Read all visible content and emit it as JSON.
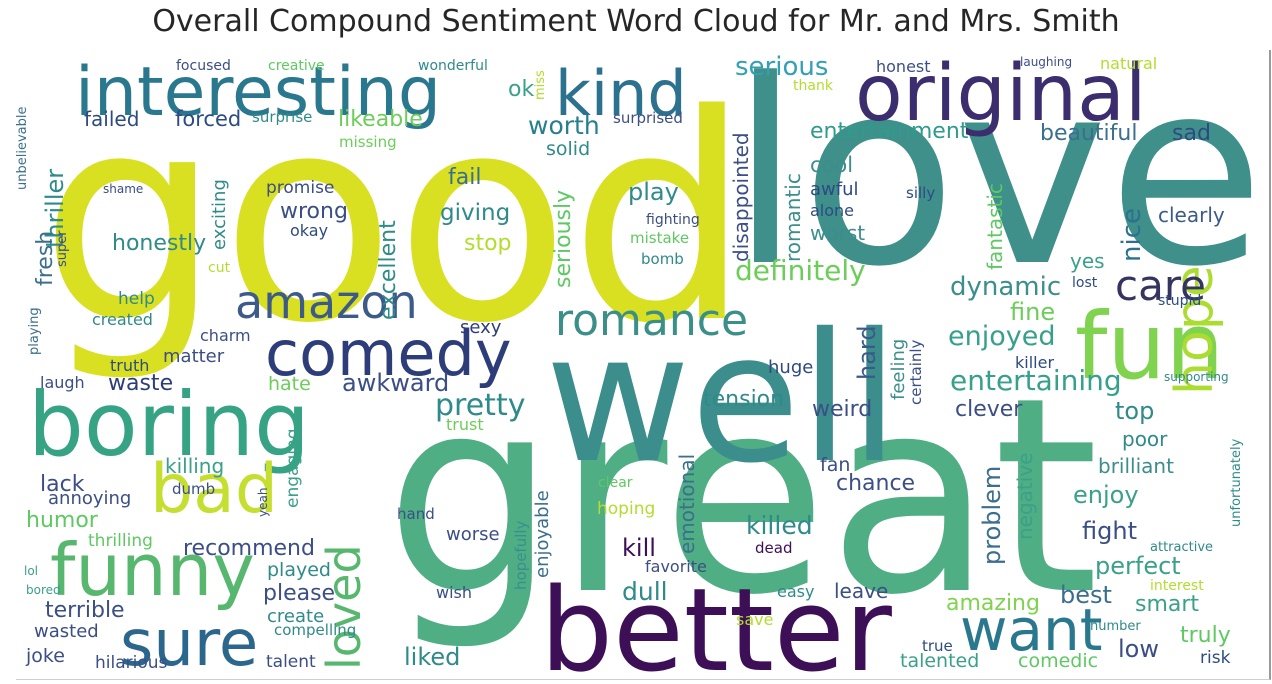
{
  "chart_data": {
    "type": "wordcloud",
    "title": "Overall Compound Sentiment Word Cloud for Mr. and Mrs. Smith",
    "colormap": "viridis",
    "background": "#ffffff",
    "words": [
      {
        "text": "good",
        "weight": 1.0,
        "color": "#d9e021"
      },
      {
        "text": "love",
        "weight": 0.93,
        "color": "#3f8f8b"
      },
      {
        "text": "great",
        "weight": 0.9,
        "color": "#4fae84"
      },
      {
        "text": "well",
        "weight": 0.82,
        "color": "#3b8e8c"
      },
      {
        "text": "better",
        "weight": 0.72,
        "color": "#3d0f57"
      },
      {
        "text": "original",
        "weight": 0.55,
        "color": "#3b2d6e"
      },
      {
        "text": "interesting",
        "weight": 0.5,
        "color": "#2a788e"
      },
      {
        "text": "fun",
        "weight": 0.52,
        "color": "#7fd34e"
      },
      {
        "text": "boring",
        "weight": 0.5,
        "color": "#36a384"
      },
      {
        "text": "kind",
        "weight": 0.42,
        "color": "#2c718e"
      },
      {
        "text": "comedy",
        "weight": 0.42,
        "color": "#2d3d7a"
      },
      {
        "text": "funny",
        "weight": 0.44,
        "color": "#57b76e"
      },
      {
        "text": "bad",
        "weight": 0.42,
        "color": "#c5de30"
      },
      {
        "text": "sure",
        "weight": 0.4,
        "color": "#2b668d"
      },
      {
        "text": "want",
        "weight": 0.36,
        "color": "#2a788e"
      },
      {
        "text": "amazon",
        "weight": 0.32,
        "color": "#3c5a8a"
      },
      {
        "text": "romance",
        "weight": 0.3,
        "color": "#3a8f88"
      },
      {
        "text": "hope",
        "weight": 0.34,
        "color": "#aadc32"
      },
      {
        "text": "care",
        "weight": 0.26,
        "color": "#35335f"
      },
      {
        "text": "loved",
        "weight": 0.3,
        "color": "#57b76e"
      },
      {
        "text": "pretty",
        "weight": 0.2,
        "color": "#2f8a8a"
      },
      {
        "text": "serious",
        "weight": 0.18,
        "color": "#33a0b3"
      },
      {
        "text": "definitely",
        "weight": 0.19,
        "color": "#6dcd59"
      },
      {
        "text": "entertaining",
        "weight": 0.2,
        "color": "#37a08d"
      },
      {
        "text": "enjoyed",
        "weight": 0.18,
        "color": "#37a08d"
      },
      {
        "text": "dynamic",
        "weight": 0.17,
        "color": "#3b8e8c"
      },
      {
        "text": "fine",
        "weight": 0.15,
        "color": "#6dcd59"
      },
      {
        "text": "worth",
        "weight": 0.16,
        "color": "#277f8e"
      },
      {
        "text": "likeable",
        "weight": 0.14,
        "color": "#6dcd59"
      },
      {
        "text": "forced",
        "weight": 0.13,
        "color": "#2d4b82"
      },
      {
        "text": "failed",
        "weight": 0.12,
        "color": "#2d4b82"
      },
      {
        "text": "ok",
        "weight": 0.14,
        "color": "#3aa08a"
      },
      {
        "text": "entertainment",
        "weight": 0.14,
        "color": "#2f9b8c"
      },
      {
        "text": "beautiful",
        "weight": 0.14,
        "color": "#3b6f8e"
      },
      {
        "text": "sad",
        "weight": 0.14,
        "color": "#2d4b82"
      },
      {
        "text": "cool",
        "weight": 0.13,
        "color": "#3b8e8c"
      },
      {
        "text": "awful",
        "weight": 0.11,
        "color": "#2d4b82"
      },
      {
        "text": "alone",
        "weight": 0.1,
        "color": "#2d4b82"
      },
      {
        "text": "worst",
        "weight": 0.12,
        "color": "#3b8e8c"
      },
      {
        "text": "fantastic",
        "weight": 0.13,
        "color": "#5ec962"
      },
      {
        "text": "nice",
        "weight": 0.16,
        "color": "#2c718e"
      },
      {
        "text": "yes",
        "weight": 0.13,
        "color": "#3aa08a"
      },
      {
        "text": "clearly",
        "weight": 0.13,
        "color": "#3b5a8a"
      },
      {
        "text": "romantic",
        "weight": 0.13,
        "color": "#3b8e8c"
      },
      {
        "text": "disappointed",
        "weight": 0.14,
        "color": "#3b4e86"
      },
      {
        "text": "play",
        "weight": 0.15,
        "color": "#2f8a8a"
      },
      {
        "text": "giving",
        "weight": 0.14,
        "color": "#2f8a8a"
      },
      {
        "text": "fail",
        "weight": 0.14,
        "color": "#3b6f8e"
      },
      {
        "text": "stop",
        "weight": 0.14,
        "color": "#b2dd2e"
      },
      {
        "text": "solid",
        "weight": 0.12,
        "color": "#2f8a8a"
      },
      {
        "text": "seriously",
        "weight": 0.14,
        "color": "#5ec962"
      },
      {
        "text": "excellent",
        "weight": 0.14,
        "color": "#2f8a8a"
      },
      {
        "text": "wrong",
        "weight": 0.14,
        "color": "#3b4e86"
      },
      {
        "text": "okay",
        "weight": 0.1,
        "color": "#2d4b82"
      },
      {
        "text": "promise",
        "weight": 0.1,
        "color": "#3b4e86"
      },
      {
        "text": "exciting",
        "weight": 0.12,
        "color": "#2f8a8a"
      },
      {
        "text": "thriller",
        "weight": 0.15,
        "color": "#2f8a8a"
      },
      {
        "text": "fresh",
        "weight": 0.14,
        "color": "#3b6f8e"
      },
      {
        "text": "honestly",
        "weight": 0.13,
        "color": "#2f8a8a"
      },
      {
        "text": "help",
        "weight": 0.11,
        "color": "#2f8a8a"
      },
      {
        "text": "created",
        "weight": 0.1,
        "color": "#2f8a8a"
      },
      {
        "text": "charm",
        "weight": 0.09,
        "color": "#3b4e86"
      },
      {
        "text": "matter",
        "weight": 0.1,
        "color": "#3b4e86"
      },
      {
        "text": "truth",
        "weight": 0.09,
        "color": "#2d4b82"
      },
      {
        "text": "laugh",
        "weight": 0.09,
        "color": "#3b4e86"
      },
      {
        "text": "waste",
        "weight": 0.14,
        "color": "#2d3d7a"
      },
      {
        "text": "hate",
        "weight": 0.11,
        "color": "#6dcd59"
      },
      {
        "text": "awkward",
        "weight": 0.15,
        "color": "#3b4e86"
      },
      {
        "text": "sexy",
        "weight": 0.1,
        "color": "#2d3d7a"
      },
      {
        "text": "hard",
        "weight": 0.16,
        "color": "#3b5a8a"
      },
      {
        "text": "feeling",
        "weight": 0.12,
        "color": "#3b8e8c"
      },
      {
        "text": "certainly",
        "weight": 0.1,
        "color": "#3b4e86"
      },
      {
        "text": "huge",
        "weight": 0.12,
        "color": "#2d4b82"
      },
      {
        "text": "tension",
        "weight": 0.14,
        "color": "#2f8a8a"
      },
      {
        "text": "weird",
        "weight": 0.14,
        "color": "#3b4e86"
      },
      {
        "text": "clever",
        "weight": 0.14,
        "color": "#3b4e86"
      },
      {
        "text": "killer",
        "weight": 0.1,
        "color": "#2d4b82"
      },
      {
        "text": "top",
        "weight": 0.15,
        "color": "#2f8a8a"
      },
      {
        "text": "poor",
        "weight": 0.13,
        "color": "#2f8a8a"
      },
      {
        "text": "brilliant",
        "weight": 0.13,
        "color": "#3b8e8c"
      },
      {
        "text": "negative",
        "weight": 0.13,
        "color": "#3aa08a"
      },
      {
        "text": "problem",
        "weight": 0.14,
        "color": "#3b6f8e"
      },
      {
        "text": "enjoy",
        "weight": 0.14,
        "color": "#3aa08a"
      },
      {
        "text": "fight",
        "weight": 0.14,
        "color": "#3b4e86"
      },
      {
        "text": "perfect",
        "weight": 0.14,
        "color": "#3aa08a"
      },
      {
        "text": "best",
        "weight": 0.14,
        "color": "#3b6f8e"
      },
      {
        "text": "smart",
        "weight": 0.14,
        "color": "#3aa08a"
      },
      {
        "text": "amazing",
        "weight": 0.14,
        "color": "#7fd34e"
      },
      {
        "text": "fan",
        "weight": 0.11,
        "color": "#3b4e86"
      },
      {
        "text": "chance",
        "weight": 0.12,
        "color": "#3b4e86"
      },
      {
        "text": "killed",
        "weight": 0.14,
        "color": "#2f8a8a"
      },
      {
        "text": "emotional",
        "weight": 0.12,
        "color": "#3b6f8e"
      },
      {
        "text": "kill",
        "weight": 0.14,
        "color": "#3d0f57"
      },
      {
        "text": "dull",
        "weight": 0.14,
        "color": "#2f8a8a"
      },
      {
        "text": "favorite",
        "weight": 0.09,
        "color": "#3b4e86"
      },
      {
        "text": "hoping",
        "weight": 0.09,
        "color": "#b2dd2e"
      },
      {
        "text": "clear",
        "weight": 0.08,
        "color": "#5ec962"
      },
      {
        "text": "worse",
        "weight": 0.1,
        "color": "#3b4e86"
      },
      {
        "text": "enjoyable",
        "weight": 0.11,
        "color": "#3b6f8e"
      },
      {
        "text": "hopefully",
        "weight": 0.08,
        "color": "#3b8e8c"
      },
      {
        "text": "killing",
        "weight": 0.12,
        "color": "#3aa08a"
      },
      {
        "text": "engaging",
        "weight": 0.1,
        "color": "#3aa08a"
      },
      {
        "text": "lack",
        "weight": 0.14,
        "color": "#3b4e86"
      },
      {
        "text": "annoying",
        "weight": 0.12,
        "color": "#3b4e86"
      },
      {
        "text": "humor",
        "weight": 0.14,
        "color": "#5ec962"
      },
      {
        "text": "recommend",
        "weight": 0.14,
        "color": "#3b4e86"
      },
      {
        "text": "thrilling",
        "weight": 0.1,
        "color": "#5ec962"
      },
      {
        "text": "played",
        "weight": 0.1,
        "color": "#2f8a8a"
      },
      {
        "text": "please",
        "weight": 0.13,
        "color": "#3b4e86"
      },
      {
        "text": "create",
        "weight": 0.11,
        "color": "#2f8a8a"
      },
      {
        "text": "compelling",
        "weight": 0.09,
        "color": "#2f8a8a"
      },
      {
        "text": "terrible",
        "weight": 0.14,
        "color": "#3b4e86"
      },
      {
        "text": "wasted",
        "weight": 0.11,
        "color": "#3b4e86"
      },
      {
        "text": "joke",
        "weight": 0.11,
        "color": "#3b4e86"
      },
      {
        "text": "hilarious",
        "weight": 0.1,
        "color": "#3b4e86"
      },
      {
        "text": "talent",
        "weight": 0.1,
        "color": "#3b4e86"
      },
      {
        "text": "liked",
        "weight": 0.14,
        "color": "#2f8a8a"
      },
      {
        "text": "wish",
        "weight": 0.1,
        "color": "#3b4e86"
      },
      {
        "text": "easy",
        "weight": 0.1,
        "color": "#2f8a8a"
      },
      {
        "text": "leave",
        "weight": 0.12,
        "color": "#3b4e86"
      },
      {
        "text": "save",
        "weight": 0.09,
        "color": "#b2dd2e"
      },
      {
        "text": "true",
        "weight": 0.08,
        "color": "#2d4b82"
      },
      {
        "text": "talented",
        "weight": 0.1,
        "color": "#3aa08a"
      },
      {
        "text": "comedic",
        "weight": 0.1,
        "color": "#5ec962"
      },
      {
        "text": "low",
        "weight": 0.14,
        "color": "#3b4e86"
      },
      {
        "text": "truly",
        "weight": 0.12,
        "color": "#5ec962"
      },
      {
        "text": "risk",
        "weight": 0.09,
        "color": "#2d4b82"
      },
      {
        "text": "number",
        "weight": 0.07,
        "color": "#2f8a8a"
      },
      {
        "text": "interest",
        "weight": 0.08,
        "color": "#b2dd2e"
      },
      {
        "text": "attractive",
        "weight": 0.08,
        "color": "#2f8a8a"
      },
      {
        "text": "unfortunately",
        "weight": 0.07,
        "color": "#2f8a8a"
      },
      {
        "text": "supporting",
        "weight": 0.07,
        "color": "#2f8a8a"
      },
      {
        "text": "lost",
        "weight": 0.08,
        "color": "#2d4b82"
      },
      {
        "text": "stupid",
        "weight": 0.07,
        "color": "#2d4b82"
      },
      {
        "text": "silly",
        "weight": 0.07,
        "color": "#2d4b82"
      },
      {
        "text": "honest",
        "weight": 0.08,
        "color": "#3b4e86"
      },
      {
        "text": "natural",
        "weight": 0.08,
        "color": "#b2dd2e"
      },
      {
        "text": "laughing",
        "weight": 0.06,
        "color": "#3b4e86"
      },
      {
        "text": "thank",
        "weight": 0.06,
        "color": "#b2dd2e"
      },
      {
        "text": "focused",
        "weight": 0.07,
        "color": "#3b4e86"
      },
      {
        "text": "creative",
        "weight": 0.07,
        "color": "#5ec962"
      },
      {
        "text": "wonderful",
        "weight": 0.07,
        "color": "#2f8a8a"
      },
      {
        "text": "miss",
        "weight": 0.06,
        "color": "#b2dd2e"
      },
      {
        "text": "surprise",
        "weight": 0.07,
        "color": "#2f8a8a"
      },
      {
        "text": "surprised",
        "weight": 0.07,
        "color": "#3b4e86"
      },
      {
        "text": "missing",
        "weight": 0.06,
        "color": "#6dcd59"
      },
      {
        "text": "unbelievable",
        "weight": 0.06,
        "color": "#3b6f8e"
      },
      {
        "text": "shame",
        "weight": 0.05,
        "color": "#3b4e86"
      },
      {
        "text": "super",
        "weight": 0.05,
        "color": "#3b4e86"
      },
      {
        "text": "cut",
        "weight": 0.06,
        "color": "#b2dd2e"
      },
      {
        "text": "fighting",
        "weight": 0.06,
        "color": "#3b4e86"
      },
      {
        "text": "mistake",
        "weight": 0.07,
        "color": "#5ec962"
      },
      {
        "text": "bomb",
        "weight": 0.07,
        "color": "#2f8a8a"
      },
      {
        "text": "dumb",
        "weight": 0.06,
        "color": "#3b4e86"
      },
      {
        "text": "trust",
        "weight": 0.07,
        "color": "#6dcd59"
      },
      {
        "text": "hand",
        "weight": 0.06,
        "color": "#3b4e86"
      },
      {
        "text": "yeah",
        "weight": 0.05,
        "color": "#3b4e86"
      },
      {
        "text": "dead",
        "weight": 0.06,
        "color": "#3d0f57"
      },
      {
        "text": "playing",
        "weight": 0.05,
        "color": "#3b6f8e"
      },
      {
        "text": "lol",
        "weight": 0.05,
        "color": "#3aa08a"
      },
      {
        "text": "bored",
        "weight": 0.05,
        "color": "#3aa08a"
      }
    ]
  }
}
